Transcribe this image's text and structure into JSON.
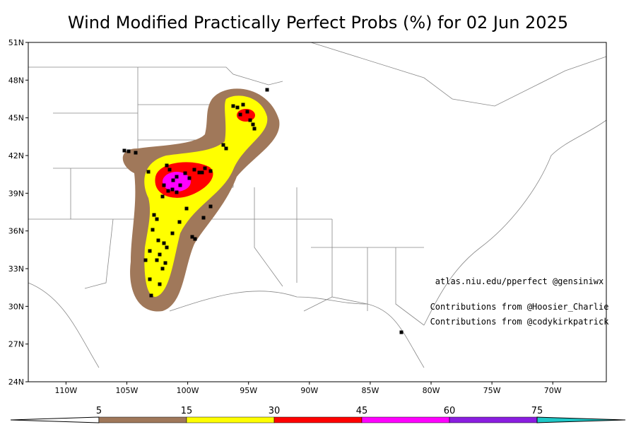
{
  "title": "Wind Modified Practically Perfect Probs (%) for 02 Jun 2025",
  "map": {
    "xlim": [
      -113.1,
      -65.6
    ],
    "ylim": [
      24,
      51
    ],
    "lat_ticks": [
      {
        "value": 51,
        "label": "51N"
      },
      {
        "value": 48,
        "label": "48N"
      },
      {
        "value": 45,
        "label": "45N"
      },
      {
        "value": 42,
        "label": "42N"
      },
      {
        "value": 39,
        "label": "39N"
      },
      {
        "value": 36,
        "label": "36N"
      },
      {
        "value": 33,
        "label": "33N"
      },
      {
        "value": 30,
        "label": "30N"
      },
      {
        "value": 27,
        "label": "27N"
      },
      {
        "value": 24,
        "label": "24N"
      }
    ],
    "lon_ticks": [
      {
        "value": -110,
        "label": "110W"
      },
      {
        "value": -105,
        "label": "105W"
      },
      {
        "value": -100,
        "label": "100W"
      },
      {
        "value": -95,
        "label": "95W"
      },
      {
        "value": -90,
        "label": "90W"
      },
      {
        "value": -85,
        "label": "85W"
      },
      {
        "value": -80,
        "label": "80W"
      },
      {
        "value": -75,
        "label": "75W"
      },
      {
        "value": -70,
        "label": "70W"
      }
    ]
  },
  "annotations": [
    "atlas.niu.edu/pperfect @gensiniwx",
    "Contributions from @Hoosier_Charlie",
    "Contributions from @codykirkpatrick"
  ],
  "colorbar": {
    "levels": [
      5,
      15,
      30,
      45,
      60,
      75
    ],
    "colors": [
      "#a0785a",
      "#ffff00",
      "#ff0000",
      "#ff00ff",
      "#8a1ee0"
    ],
    "over_color": "#1fc8c8"
  }
}
